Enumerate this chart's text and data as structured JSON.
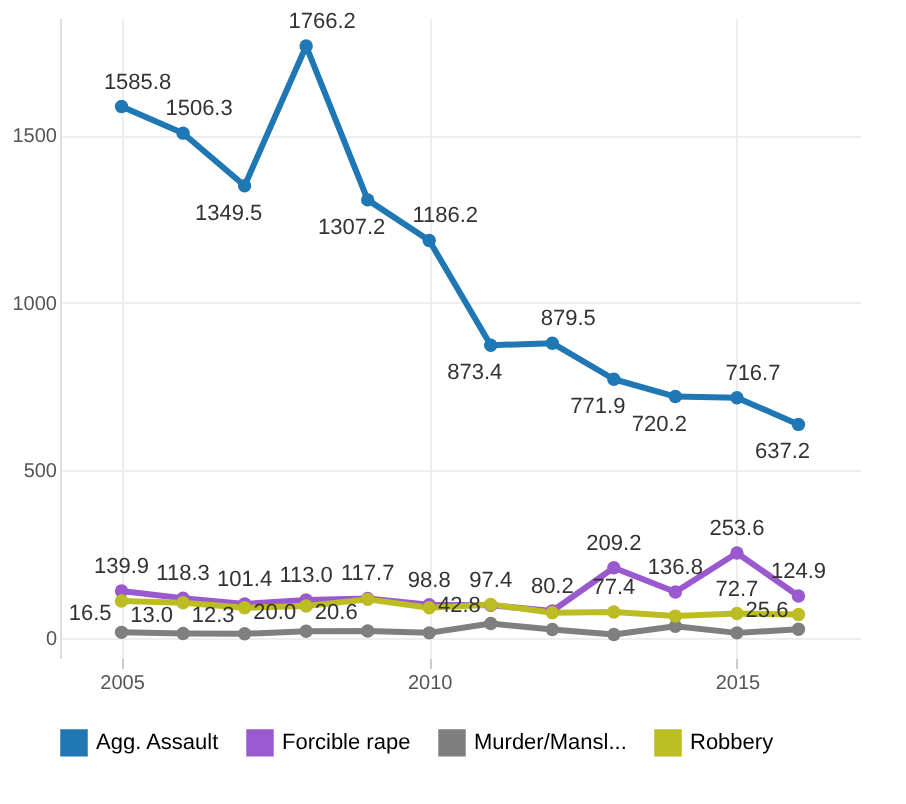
{
  "chart_data": {
    "type": "line",
    "x": [
      2005,
      2006,
      2007,
      2008,
      2009,
      2010,
      2011,
      2012,
      2013,
      2014,
      2015,
      2016
    ],
    "xlim": [
      2004,
      2017
    ],
    "xticks": [
      2005,
      2010,
      2015
    ],
    "ylim": [
      -60,
      1850
    ],
    "yticks": [
      0,
      500,
      1000,
      1500
    ],
    "grid": true,
    "legend": "bottom",
    "marker": "circle",
    "line_style": "solid",
    "series": [
      {
        "name": "Agg. Assault",
        "color": "#1f77b4",
        "values": [
          1585.8,
          1506.3,
          1349.5,
          1766.2,
          1307.2,
          1186.2,
          873.4,
          879.5,
          771.9,
          720.2,
          716.7,
          637.2
        ],
        "value_labels": [
          "1585.8",
          "1506.3",
          "1349.5",
          "1766.2",
          "1307.2",
          "1186.2",
          "873.4",
          "879.5",
          "771.9",
          "720.2",
          "716.7",
          "637.2"
        ]
      },
      {
        "name": "Forcible rape",
        "color": "#9b59d0",
        "values": [
          139.9,
          118.3,
          101.4,
          113.0,
          117.7,
          98.8,
          97.4,
          80.2,
          209.2,
          136.8,
          253.6,
          124.9
        ],
        "value_labels": [
          "139.9",
          "118.3",
          "101.4",
          "113.0",
          "117.7",
          "98.8",
          "97.4",
          "80.2",
          "209.2",
          "136.8",
          "253.6",
          "124.9"
        ]
      },
      {
        "name": "Murder/Mansl...",
        "color": "#7f7f7f",
        "values": [
          16.5,
          13.0,
          12.3,
          20.0,
          20.6,
          15,
          42.8,
          25,
          10,
          35,
          15,
          25.6
        ],
        "value_labels": [
          "16.5",
          "13.0",
          "12.3",
          "20.0",
          "20.6",
          null,
          "42.8",
          null,
          null,
          null,
          null,
          "25.6"
        ]
      },
      {
        "name": "Robbery",
        "color": "#bcbd22",
        "values": [
          110,
          105,
          90,
          95,
          115,
          90,
          100,
          75,
          77.4,
          65,
          72.7,
          70
        ],
        "value_labels": [
          null,
          null,
          null,
          null,
          null,
          null,
          null,
          null,
          "77.4",
          null,
          "72.7",
          null
        ]
      }
    ]
  }
}
